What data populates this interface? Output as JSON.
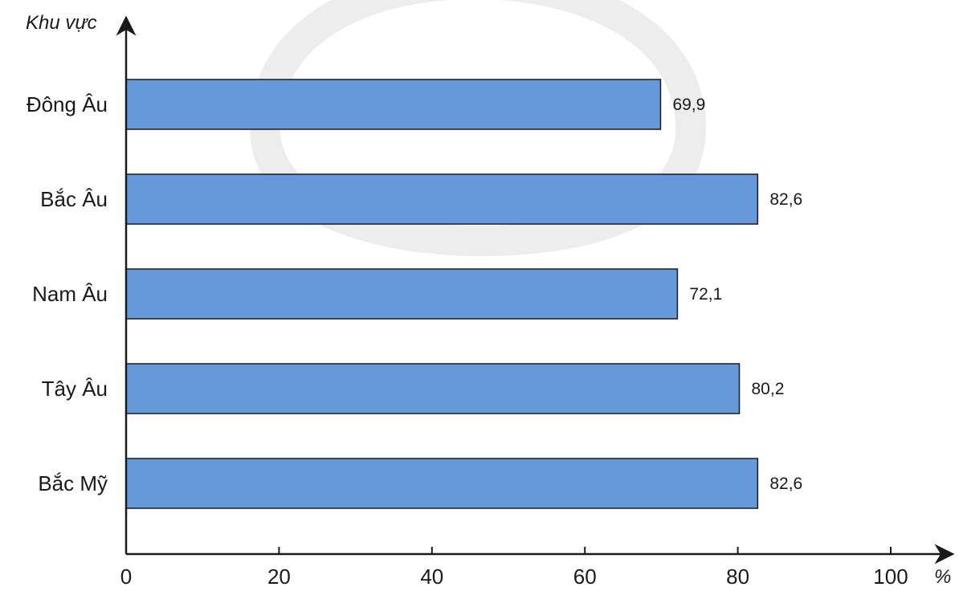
{
  "chart_data": {
    "type": "bar",
    "orientation": "horizontal",
    "categories": [
      "Đông Âu",
      "Bắc Âu",
      "Nam Âu",
      "Tây Âu",
      "Bắc Mỹ"
    ],
    "values": [
      69.9,
      82.6,
      72.1,
      80.2,
      82.6
    ],
    "value_labels": [
      "69,9",
      "82,6",
      "72,1",
      "80,2",
      "82,6"
    ],
    "ylabel": "Khu vực",
    "xlabel": "%",
    "xlim": [
      0,
      100
    ],
    "xticks": [
      0,
      20,
      40,
      60,
      80,
      100
    ],
    "bar_color": "#6699d9",
    "bar_edge_color": "#1a1a1a",
    "grid": false,
    "legend": "none"
  }
}
